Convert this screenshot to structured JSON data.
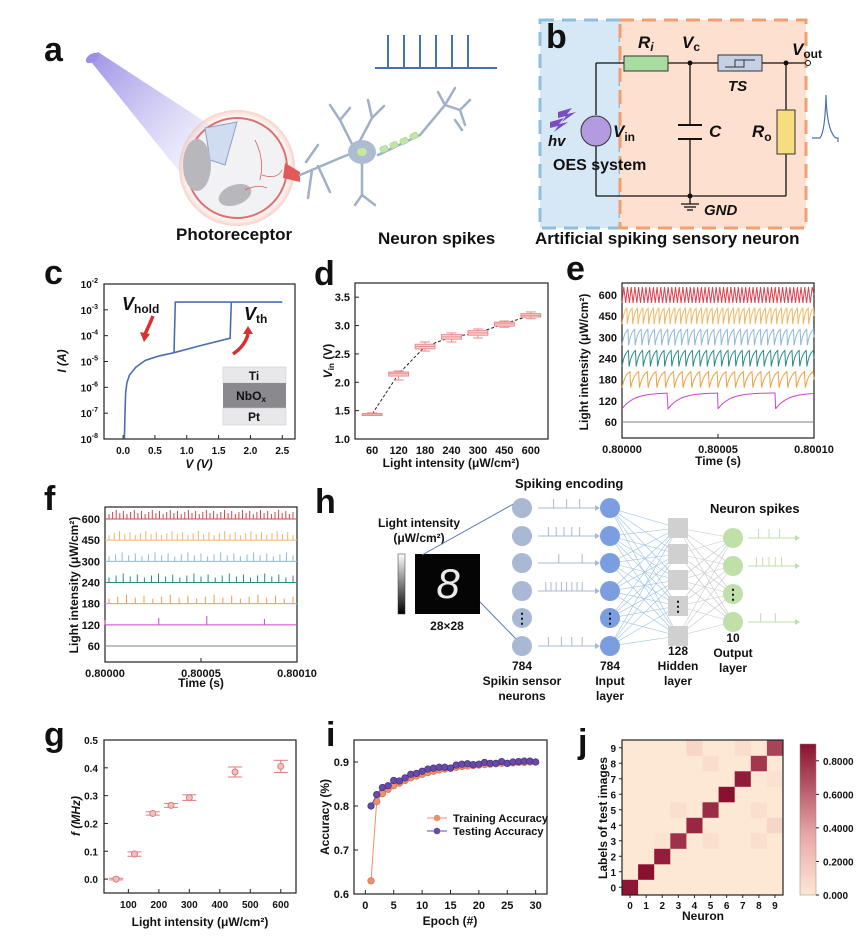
{
  "figure": {
    "panel_labels": [
      "a",
      "b",
      "c",
      "d",
      "e",
      "f",
      "g",
      "h",
      "i",
      "j"
    ]
  },
  "panel_a": {
    "label": "a",
    "caption_left": "Photoreceptor",
    "caption_right": "Neuron spikes",
    "spike_count": 6,
    "colors": {
      "light": "#8a7de0",
      "eye": "#e06a6a",
      "neuron": "#9fb0c8",
      "myelin": "#b8e0a0",
      "spikes": "#4a6fb0"
    }
  },
  "panel_b": {
    "label": "b",
    "caption": "Artificial spiking sensory neuron",
    "components": {
      "Ri": {
        "main": "R",
        "sub": "i"
      },
      "Vc": {
        "main": "V",
        "sub": "c"
      },
      "TS": "TS",
      "Vout": {
        "main": "V",
        "sub": "out"
      },
      "C": "C",
      "Ro": {
        "main": "R",
        "sub": "o"
      },
      "Vin": {
        "main": "V",
        "sub": "in"
      },
      "hv": "hv",
      "GND": "GND",
      "oes": "OES system"
    },
    "colors": {
      "oes_box": "#d6e8f5",
      "oes_border": "#8fbfdf",
      "neuron_box": "#fde0cf",
      "neuron_border": "#f0a070",
      "resistor_i": "#a8dca0",
      "resistor_o": "#f7dc80",
      "ts": "#c5d0e6",
      "source": "#b49ae0"
    }
  },
  "chart_data": [
    {
      "panel": "c",
      "type": "line",
      "title": "",
      "xlabel": "V (V)",
      "ylabel": "I (A)",
      "yscale": "log",
      "xlim": [
        -0.3,
        2.7
      ],
      "ylim_exp": [
        -8,
        -2
      ],
      "xticks": [
        "0.0",
        "0.5",
        "1.0",
        "1.5",
        "2.0",
        "2.5"
      ],
      "yticks": [
        {
          "base": "10",
          "exp": "-8"
        },
        {
          "base": "10",
          "exp": "-7"
        },
        {
          "base": "10",
          "exp": "-6"
        },
        {
          "base": "10",
          "exp": "-5"
        },
        {
          "base": "10",
          "exp": "-4"
        },
        {
          "base": "10",
          "exp": "-3"
        },
        {
          "base": "10",
          "exp": "-2"
        }
      ],
      "series": [
        {
          "name": "I-V sweep",
          "x": [
            0.02,
            0.03,
            0.04,
            0.06,
            0.1,
            0.2,
            0.35,
            0.55,
            0.8,
            1.2,
            1.68,
            1.7,
            1.72,
            2.5,
            0.82,
            0.8
          ],
          "y": [
            1e-08,
            1e-07,
            6e-07,
            1.5e-06,
            3e-06,
            6e-06,
            1.1e-05,
            1.6e-05,
            2.2e-05,
            4e-05,
            8e-05,
            0.002,
            0.002,
            0.002,
            0.002,
            2.2e-05
          ],
          "color": "#4a6fb0"
        }
      ],
      "annotations": {
        "vhold": {
          "main": "V",
          "sub": "hold"
        },
        "vth": {
          "main": "V",
          "sub": "th"
        }
      },
      "inset_layers": [
        "Ti",
        "NbO",
        "Pt"
      ],
      "inset_sub": "x"
    },
    {
      "panel": "d",
      "type": "box",
      "title": "",
      "xlabel": "Light intensity (μW/cm²)",
      "ylabel_main": "V",
      "ylabel_sub": "in",
      "ylabel_unit": " (V)",
      "categories": [
        "60",
        "120",
        "180",
        "240",
        "300",
        "450",
        "600"
      ],
      "median": [
        1.44,
        2.15,
        2.63,
        2.8,
        2.87,
        3.03,
        3.18
      ],
      "q1": [
        1.43,
        2.11,
        2.59,
        2.76,
        2.83,
        2.99,
        3.15
      ],
      "q3": [
        1.45,
        2.18,
        2.67,
        2.84,
        2.91,
        3.06,
        3.21
      ],
      "whisker_low": [
        1.42,
        2.04,
        2.55,
        2.71,
        2.78,
        2.97,
        3.12
      ],
      "whisker_high": [
        1.46,
        2.2,
        2.71,
        2.87,
        2.94,
        3.08,
        3.24
      ],
      "ylim": [
        1.0,
        3.75
      ],
      "yticks": [
        "1.0",
        "1.5",
        "2.0",
        "2.5",
        "3.0",
        "3.5"
      ],
      "color": "#e98a8a"
    },
    {
      "panel": "e",
      "type": "line",
      "title": "",
      "xlabel": "Time (s)",
      "ylabel": "Light intensity (μW/cm²)",
      "xticks": [
        "0.80000",
        "0.80005",
        "0.80010"
      ],
      "xlim": [
        0.8,
        0.8001
      ],
      "yticks": [
        "60",
        "120",
        "180",
        "240",
        "300",
        "450",
        "600"
      ],
      "series": [
        {
          "name": "600",
          "color": "#d9434f",
          "cycles": 52,
          "shape": "triangle"
        },
        {
          "name": "450",
          "color": "#f0b860",
          "cycles": 36,
          "shape": "sawtooth"
        },
        {
          "name": "300",
          "color": "#8fb8d8",
          "cycles": 29,
          "shape": "sawtooth"
        },
        {
          "name": "240",
          "color": "#2a8a8a",
          "cycles": 27,
          "shape": "sawtooth"
        },
        {
          "name": "180",
          "color": "#f0a040",
          "cycles": 22,
          "shape": "sawtooth"
        },
        {
          "name": "120",
          "color": "#d040d0",
          "cycles": 4,
          "shape": "charge",
          "reset_times": [
            0.800024,
            0.80005,
            0.80008
          ]
        },
        {
          "name": "60",
          "color": "#808080",
          "cycles": 0,
          "shape": "flat"
        }
      ]
    },
    {
      "panel": "f",
      "type": "line",
      "title": "",
      "xlabel": "Time (s)",
      "ylabel": "Light intensity (μW/cm²)",
      "xticks": [
        "0.80000",
        "0.80005",
        "0.80010"
      ],
      "xlim": [
        0.8,
        0.8001
      ],
      "yticks": [
        "60",
        "120",
        "180",
        "240",
        "300",
        "450",
        "600"
      ],
      "series": [
        {
          "name": "600",
          "color": "#d9434f",
          "spikes": 52
        },
        {
          "name": "450",
          "color": "#f0b860",
          "spikes": 36
        },
        {
          "name": "300",
          "color": "#8fb8d8",
          "spikes": 29
        },
        {
          "name": "240",
          "color": "#2a8a8a",
          "spikes": 27
        },
        {
          "name": "180",
          "color": "#f0a040",
          "spikes": 22
        },
        {
          "name": "120",
          "color": "#d040d0",
          "spike_times": [
            0.8,
            0.800028,
            0.800053,
            0.800083
          ]
        },
        {
          "name": "60",
          "color": "#808080",
          "spikes": 0
        }
      ]
    },
    {
      "panel": "g",
      "type": "scatter",
      "title": "",
      "xlabel": "Light intensity (μW/cm²)",
      "ylabel": "f (MHz)",
      "x": [
        60,
        120,
        180,
        240,
        300,
        450,
        600
      ],
      "y": [
        0.0,
        0.09,
        0.236,
        0.265,
        0.293,
        0.385,
        0.405
      ],
      "yerr": [
        0.003,
        0.008,
        0.006,
        0.007,
        0.01,
        0.018,
        0.022
      ],
      "xlim": [
        20,
        650
      ],
      "ylim": [
        -0.05,
        0.5
      ],
      "xticks": [
        "100",
        "200",
        "300",
        "400",
        "500",
        "600"
      ],
      "yticks": [
        "0.0",
        "0.1",
        "0.2",
        "0.3",
        "0.4",
        "0.5"
      ],
      "color": "#e07a7a"
    },
    {
      "panel": "i",
      "type": "line",
      "title": "",
      "xlabel": "Epoch (#)",
      "ylabel": "Accuracy (%)",
      "xlim": [
        -2,
        32
      ],
      "ylim": [
        0.6,
        0.95
      ],
      "xticks": [
        "0",
        "5",
        "10",
        "15",
        "20",
        "25",
        "30"
      ],
      "yticks": [
        "0.6",
        "0.7",
        "0.8",
        "0.9"
      ],
      "x": [
        1,
        2,
        3,
        4,
        5,
        6,
        7,
        8,
        9,
        10,
        11,
        12,
        13,
        14,
        15,
        16,
        17,
        18,
        19,
        20,
        21,
        22,
        23,
        24,
        25,
        26,
        27,
        28,
        29,
        30
      ],
      "series": [
        {
          "name": "Training Accuracy",
          "color": "#f0906a",
          "values": [
            0.63,
            0.81,
            0.828,
            0.838,
            0.846,
            0.852,
            0.858,
            0.864,
            0.868,
            0.872,
            0.876,
            0.879,
            0.882,
            0.884,
            0.886,
            0.888,
            0.89,
            0.891,
            0.892,
            0.893,
            0.894,
            0.895,
            0.896,
            0.897,
            0.897,
            0.898,
            0.899,
            0.899,
            0.9,
            0.9
          ]
        },
        {
          "name": "Testing Accuracy",
          "color": "#6a4aa8",
          "values": [
            0.8,
            0.826,
            0.842,
            0.846,
            0.858,
            0.857,
            0.864,
            0.872,
            0.874,
            0.879,
            0.884,
            0.886,
            0.888,
            0.888,
            0.886,
            0.893,
            0.895,
            0.896,
            0.894,
            0.895,
            0.899,
            0.897,
            0.897,
            0.901,
            0.897,
            0.9,
            0.901,
            0.902,
            0.902,
            0.9
          ]
        }
      ],
      "legend_position": "center-right"
    },
    {
      "panel": "j",
      "type": "heatmap",
      "title": "",
      "xlabel": "Neuron",
      "ylabel": "Labels of test images",
      "x_categories": [
        "0",
        "1",
        "2",
        "3",
        "4",
        "5",
        "6",
        "7",
        "8",
        "9"
      ],
      "y_categories": [
        "0",
        "1",
        "2",
        "3",
        "4",
        "5",
        "6",
        "7",
        "8",
        "9"
      ],
      "matrix": [
        [
          0.88,
          0.0,
          0.0,
          0.0,
          0.0,
          0.0,
          0.0,
          0.0,
          0.0,
          0.0
        ],
        [
          0.0,
          0.9,
          0.0,
          0.0,
          0.0,
          0.0,
          0.0,
          0.0,
          0.0,
          0.0
        ],
        [
          0.0,
          0.0,
          0.85,
          0.0,
          0.0,
          0.0,
          0.0,
          0.0,
          0.0,
          0.0
        ],
        [
          0.0,
          0.0,
          0.03,
          0.78,
          0.0,
          0.05,
          0.0,
          0.0,
          0.05,
          0.0
        ],
        [
          0.0,
          0.0,
          0.0,
          0.0,
          0.82,
          0.0,
          0.0,
          0.0,
          0.0,
          0.1
        ],
        [
          0.0,
          0.0,
          0.0,
          0.05,
          0.0,
          0.8,
          0.0,
          0.0,
          0.05,
          0.0
        ],
        [
          0.0,
          0.0,
          0.0,
          0.0,
          0.0,
          0.0,
          0.9,
          0.0,
          0.0,
          0.0
        ],
        [
          0.0,
          0.0,
          0.0,
          0.0,
          0.0,
          0.0,
          0.0,
          0.86,
          0.0,
          0.04
        ],
        [
          0.0,
          0.0,
          0.0,
          0.0,
          0.0,
          0.06,
          0.0,
          0.0,
          0.76,
          0.0
        ],
        [
          0.0,
          0.0,
          0.0,
          0.0,
          0.1,
          0.0,
          0.0,
          0.06,
          0.0,
          0.72
        ]
      ],
      "colorbar_range": [
        0.0,
        0.9
      ],
      "colorbar_ticks": [
        "0.000",
        "0.2000",
        "0.4000",
        "0.6000",
        "0.8000"
      ],
      "colorbar_values": [
        0.0,
        0.2,
        0.4,
        0.6,
        0.8
      ],
      "color_low": "#fde8d4",
      "color_high": "#8a1030"
    }
  ],
  "panel_h": {
    "label": "h",
    "title_encoding": "Spiking encoding",
    "title_neuron_spikes": "Neuron spikes",
    "intensity_label_line1": "Light intensity",
    "intensity_label_line2": "(μW/cm²)",
    "image_size": "28×28",
    "digit": "8",
    "layers": [
      {
        "count": "784",
        "name_line1": "Spikin sensor",
        "name_line2": "neurons",
        "color": "#a9b8d3"
      },
      {
        "count": "784",
        "name_line1": "Input",
        "name_line2": "layer",
        "color": "#7a9ee0"
      },
      {
        "count": "128",
        "name_line1": "Hidden",
        "name_line2": "layer",
        "color": "#d0d0d0"
      },
      {
        "count": "10",
        "name_line1": "Output",
        "name_line2": "layer",
        "color": "#bfe0a8"
      }
    ],
    "ellipsis": "⋮"
  }
}
